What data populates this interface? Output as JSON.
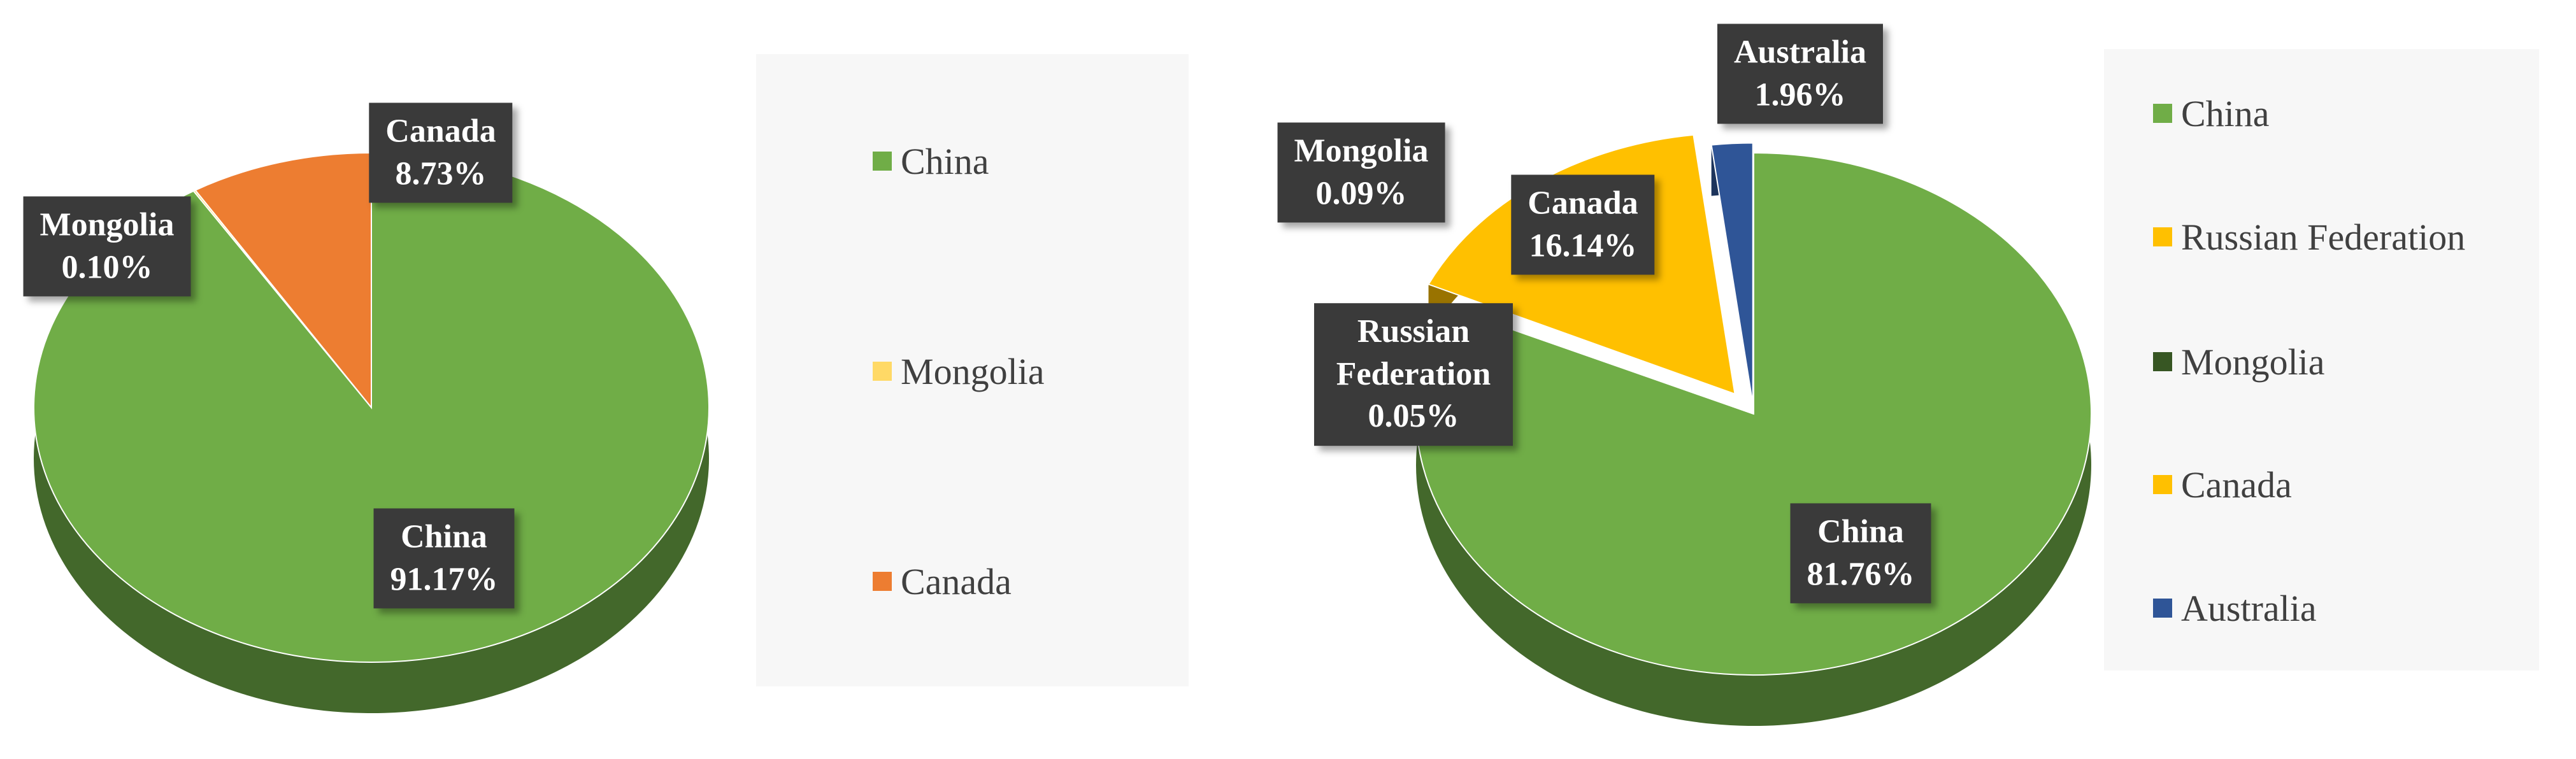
{
  "chart_data": [
    {
      "type": "pie",
      "categories": [
        "China",
        "Mongolia",
        "Canada"
      ],
      "values": [
        91.17,
        0.1,
        8.73
      ],
      "value_labels": [
        "91.17%",
        "0.10%",
        "8.73%"
      ],
      "colors": [
        "#70ad47",
        "#ffd966",
        "#ed7d31"
      ],
      "legend": "right"
    },
    {
      "type": "pie",
      "categories": [
        "China",
        "Russian Federation",
        "Mongolia",
        "Canada",
        "Australia"
      ],
      "values": [
        81.76,
        0.05,
        0.09,
        16.14,
        1.96
      ],
      "value_labels": [
        "81.76%",
        "0.05%",
        "0.09%",
        "16.14%",
        "1.96%"
      ],
      "colors": [
        "#70ad47",
        "#ffc000",
        "#375623",
        "#ffc000",
        "#2f5597"
      ],
      "legend": "right"
    }
  ]
}
